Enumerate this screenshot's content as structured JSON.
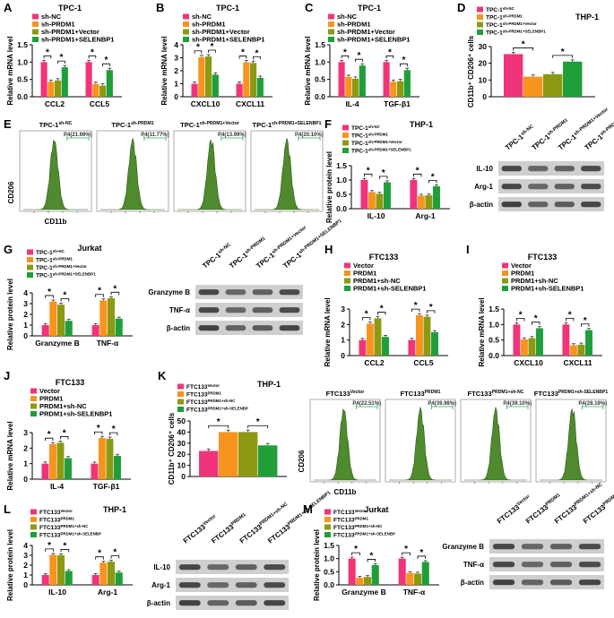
{
  "colors": {
    "pink": "#f0347a",
    "orange": "#f7941d",
    "olive": "#8c9a13",
    "green": "#1f9e3a",
    "flow": "#4f8a2e"
  },
  "panels": {
    "A": {
      "label": "A",
      "title": "TPC-1",
      "ylabel": "Relative mRNA level",
      "legend": [
        "sh-NC",
        "sh-PRDM1",
        "sh-PRDM1+Vector",
        "sh-PRDM1+SELENBP1"
      ],
      "categories": [
        "CCL2",
        "CCL5"
      ],
      "ticks": [
        "0.0",
        "0.5",
        "1.0",
        "1.5"
      ]
    },
    "B": {
      "label": "B",
      "title": "TPC-1",
      "ylabel": "Relative mRNA level",
      "legend": [
        "sh-NC",
        "sh-PRDM1",
        "sh-PRDM1+Vector",
        "sh-PRDM1+SELENBP1"
      ],
      "categories": [
        "CXCL10",
        "CXCL11"
      ],
      "ticks": [
        "0",
        "1",
        "2",
        "3",
        "4"
      ]
    },
    "C": {
      "label": "C",
      "title": "TPC-1",
      "ylabel": "Relative mRNA level",
      "legend": [
        "sh-NC",
        "sh-PRDM1",
        "sh-PRDM1+Vector",
        "sh-PRDM1+SELENBP1"
      ],
      "categories": [
        "IL-4",
        "TGF-β1"
      ],
      "ticks": [
        "0.0",
        "0.5",
        "1.0",
        "1.5"
      ]
    },
    "D": {
      "label": "D",
      "title": "THP-1",
      "ylabel": "CD11b⁺ CD206⁺ cells",
      "legend": [
        "TPC-1sh-NC",
        "TPC-1sh-PRDM1",
        "TPC-1sh-PRDM1+Vector",
        "TPC-1sh-PRDM1+SELENBP1"
      ],
      "ticks": [
        "0",
        "10",
        "20",
        "30"
      ]
    },
    "E": {
      "label": "E",
      "titles": [
        "TPC-1sh-NC",
        "TPC-1sh-PRDM1",
        "TPC-1sh-PRDM1+Vector",
        "TPC-1sh-PRDM1+SELENBP1"
      ],
      "gates": [
        "P4(21.69%)",
        "P4(11.77%)",
        "P4(13.99%)",
        "P4(20.10%)"
      ],
      "ylabel": "CD206",
      "xlabel": "CD11b"
    },
    "F": {
      "label": "F",
      "title": "THP-1",
      "ylabel": "Relative protein level",
      "legend": [
        "TPC-1sh-NC",
        "TPC-1sh-PRDM1",
        "TPC-1sh-PRDM1+Vector",
        "TPC-1sh-PRDM1+SELENBP1"
      ],
      "categories": [
        "IL-10",
        "Arg-1"
      ],
      "ticks": [
        "0.0",
        "0.5",
        "1.0",
        "1.5"
      ],
      "blot_lanes": [
        "TPC-1sh-NC",
        "TPC-1sh-PRDM1",
        "TPC-1sh-PRDM1+Vector",
        "TPC-1sh-PRDM1+SELENBP1"
      ],
      "blot_rows": [
        "IL-10",
        "Arg-1",
        "β-actin"
      ]
    },
    "G": {
      "label": "G",
      "title": "Jurkat",
      "ylabel": "Relative protein level",
      "legend": [
        "TPC-1sh-NC",
        "TPC-1sh-PRDM1",
        "TPC-1sh-PRDM1+Vector",
        "TPC-1sh-PRDM1+SELENBP1"
      ],
      "categories": [
        "Granzyme B",
        "TNF-α"
      ],
      "ticks": [
        "0",
        "1",
        "2",
        "3",
        "4"
      ],
      "blot_lanes": [
        "TPC-1sh-NC",
        "TPC-1sh-PRDM1",
        "TPC-1sh-PRDM1+Vector",
        "TPC-1sh-PRDM1+SELENBP1"
      ],
      "blot_rows": [
        "Granzyme B",
        "TNF-α",
        "β-actin"
      ]
    },
    "H": {
      "label": "H",
      "title": "FTC133",
      "ylabel": "Relative mRNA level",
      "legend": [
        "Vector",
        "PRDM1",
        "PRDM1+sh-NC",
        "PRDM1+sh-SELENBP1"
      ],
      "categories": [
        "CCL2",
        "CCL5"
      ],
      "ticks": [
        "0",
        "1",
        "2",
        "3"
      ]
    },
    "I": {
      "label": "I",
      "title": "FTC133",
      "ylabel": "Relative mRNA level",
      "legend": [
        "Vector",
        "PRDM1",
        "PRDM1+sh-NC",
        "PRDM1+sh-SELENBP1"
      ],
      "categories": [
        "CXCL10",
        "CXCL11"
      ],
      "ticks": [
        "0.0",
        "0.5",
        "1.0",
        "1.5"
      ]
    },
    "J": {
      "label": "J",
      "title": "FTC133",
      "ylabel": "Relative mRNA level",
      "legend": [
        "Vector",
        "PRDM1",
        "PRDM1+sh-NC",
        "PRDM1+sh-SELENBP1"
      ],
      "categories": [
        "IL-4",
        "TGF-β1"
      ],
      "ticks": [
        "0",
        "1",
        "2",
        "3"
      ]
    },
    "K": {
      "label": "K",
      "title": "THP-1",
      "ylabel": "CD11b⁺ CD206⁺ cells",
      "legend": [
        "FTC133Vector",
        "FTC133PRDM1",
        "FTC133PRDM1+sh-NC",
        "FTC133PRDM1+sh-SELENBP"
      ],
      "ticks": [
        "0",
        "10",
        "20",
        "30",
        "40",
        "50"
      ],
      "flow_titles": [
        "FTC133Vector",
        "FTC133PRDM1",
        "FTC133PRDM1+sh-NC",
        "FTC133PRDM1+sh-SELENBP1"
      ],
      "gates": [
        "P4(22.51%)",
        "P4(39.98%)",
        "P4(39.10%)",
        "P4(28.19%)"
      ],
      "flow_ylabel": "CD206",
      "flow_xlabel": "CD11b"
    },
    "L": {
      "label": "L",
      "title": "THP-1",
      "ylabel": "Relative protein level",
      "legend": [
        "FTC133Vector",
        "FTC133PRDM1",
        "FTC133PRDM1+sh-NC",
        "FTC133PRDM1+sh-SELENBP"
      ],
      "categories": [
        "IL-10",
        "Arg-1"
      ],
      "ticks": [
        "0",
        "1",
        "2",
        "3",
        "4"
      ],
      "blot_lanes": [
        "FTC133Vector",
        "FTC133PRDM1",
        "FTC133PRDM1+sh-NC",
        "FTC133PRDM1+sh-SELENBP1"
      ],
      "blot_rows": [
        "IL-10",
        "Arg-1",
        "β-actin"
      ]
    },
    "M": {
      "label": "M",
      "title": "Jurkat",
      "ylabel": "Relative protein level",
      "legend": [
        "FTC133Vector",
        "FTC133PRDM1",
        "FTC133PRDM1+sh-NC",
        "FTC133PRDM1+sh-SELENBP"
      ],
      "categories": [
        "Granzyme B",
        "TNF-α"
      ],
      "ticks": [
        "0.0",
        "0.5",
        "1.0",
        "1.5"
      ],
      "blot_lanes": [
        "FTC133Vector",
        "FTC133PRDM1",
        "FTC133PRDM1+sh-NC",
        "FTC133PRDM1+sh-SELENBP1"
      ],
      "blot_rows": [
        "Granzyme B",
        "TNF-α",
        "β-actin"
      ]
    }
  },
  "chart_data": [
    {
      "id": "A",
      "type": "bar",
      "categories": [
        "CCL2",
        "CCL5"
      ],
      "ylim": [
        0,
        1.5
      ],
      "series": [
        {
          "name": "sh-NC",
          "values": [
            1.0,
            1.0
          ]
        },
        {
          "name": "sh-PRDM1",
          "values": [
            0.43,
            0.37
          ]
        },
        {
          "name": "sh-PRDM1+Vector",
          "values": [
            0.47,
            0.32
          ]
        },
        {
          "name": "sh-PRDM1+SELENBP1",
          "values": [
            0.85,
            0.77
          ]
        }
      ]
    },
    {
      "id": "B",
      "type": "bar",
      "categories": [
        "CXCL10",
        "CXCL11"
      ],
      "ylim": [
        0,
        4
      ],
      "series": [
        {
          "name": "sh-NC",
          "values": [
            1.0,
            1.0
          ]
        },
        {
          "name": "sh-PRDM1",
          "values": [
            3.05,
            2.65
          ]
        },
        {
          "name": "sh-PRDM1+Vector",
          "values": [
            3.1,
            2.6
          ]
        },
        {
          "name": "sh-PRDM1+SELENBP1",
          "values": [
            1.7,
            1.45
          ]
        }
      ]
    },
    {
      "id": "C",
      "type": "bar",
      "categories": [
        "IL-4",
        "TGF-β1"
      ],
      "ylim": [
        0,
        1.5
      ],
      "series": [
        {
          "name": "sh-NC",
          "values": [
            1.0,
            1.0
          ]
        },
        {
          "name": "sh-PRDM1",
          "values": [
            0.57,
            0.43
          ]
        },
        {
          "name": "sh-PRDM1+Vector",
          "values": [
            0.52,
            0.45
          ]
        },
        {
          "name": "sh-PRDM1+SELENBP1",
          "values": [
            0.9,
            0.77
          ]
        }
      ]
    },
    {
      "id": "D",
      "type": "bar",
      "categories": [
        ""
      ],
      "ylim": [
        0,
        30
      ],
      "series": [
        {
          "name": "TPC-1sh-NC",
          "values": [
            25.5
          ]
        },
        {
          "name": "TPC-1sh-PRDM1",
          "values": [
            12
          ]
        },
        {
          "name": "TPC-1sh-PRDM1+Vector",
          "values": [
            13.5
          ]
        },
        {
          "name": "TPC-1sh-PRDM1+SELENBP1",
          "values": [
            21
          ]
        }
      ]
    },
    {
      "id": "F",
      "type": "bar",
      "categories": [
        "IL-10",
        "Arg-1"
      ],
      "ylim": [
        0,
        1.5
      ],
      "series": [
        {
          "name": "TPC-1sh-NC",
          "values": [
            1.0,
            1.0
          ]
        },
        {
          "name": "TPC-1sh-PRDM1",
          "values": [
            0.58,
            0.45
          ]
        },
        {
          "name": "TPC-1sh-PRDM1+Vector",
          "values": [
            0.52,
            0.47
          ]
        },
        {
          "name": "TPC-1sh-PRDM1+SELENBP1",
          "values": [
            0.92,
            0.78
          ]
        }
      ]
    },
    {
      "id": "G",
      "type": "bar",
      "categories": [
        "Granzyme B",
        "TNF-α"
      ],
      "ylim": [
        0,
        4
      ],
      "series": [
        {
          "name": "TPC-1sh-NC",
          "values": [
            1.0,
            1.0
          ]
        },
        {
          "name": "TPC-1sh-PRDM1",
          "values": [
            3.2,
            3.3
          ]
        },
        {
          "name": "TPC-1sh-PRDM1+Vector",
          "values": [
            2.9,
            3.5
          ]
        },
        {
          "name": "TPC-1sh-PRDM1+SELENBP1",
          "values": [
            1.4,
            1.6
          ]
        }
      ]
    },
    {
      "id": "H",
      "type": "bar",
      "categories": [
        "CCL2",
        "CCL5"
      ],
      "ylim": [
        0,
        3
      ],
      "series": [
        {
          "name": "Vector",
          "values": [
            1.0,
            1.0
          ]
        },
        {
          "name": "PRDM1",
          "values": [
            2.05,
            2.6
          ]
        },
        {
          "name": "PRDM1+sh-NC",
          "values": [
            2.4,
            2.5
          ]
        },
        {
          "name": "PRDM1+sh-SELENBP1",
          "values": [
            1.2,
            1.5
          ]
        }
      ]
    },
    {
      "id": "I",
      "type": "bar",
      "categories": [
        "CXCL10",
        "CXCL11"
      ],
      "ylim": [
        0,
        1.5
      ],
      "series": [
        {
          "name": "Vector",
          "values": [
            1.0,
            1.0
          ]
        },
        {
          "name": "PRDM1",
          "values": [
            0.52,
            0.33
          ]
        },
        {
          "name": "PRDM1+sh-NC",
          "values": [
            0.56,
            0.35
          ]
        },
        {
          "name": "PRDM1+sh-SELENBP1",
          "values": [
            0.88,
            0.82
          ]
        }
      ]
    },
    {
      "id": "J",
      "type": "bar",
      "categories": [
        "IL-4",
        "TGF-β1"
      ],
      "ylim": [
        0,
        3
      ],
      "series": [
        {
          "name": "Vector",
          "values": [
            1.0,
            1.0
          ]
        },
        {
          "name": "PRDM1",
          "values": [
            2.25,
            2.65
          ]
        },
        {
          "name": "PRDM1+sh-NC",
          "values": [
            2.35,
            2.6
          ]
        },
        {
          "name": "PRDM1+sh-SELENBP1",
          "values": [
            1.35,
            1.5
          ]
        }
      ]
    },
    {
      "id": "K",
      "type": "bar",
      "categories": [
        ""
      ],
      "ylim": [
        0,
        50
      ],
      "series": [
        {
          "name": "FTC133Vector",
          "values": [
            23
          ]
        },
        {
          "name": "FTC133PRDM1",
          "values": [
            40
          ]
        },
        {
          "name": "FTC133PRDM1+sh-NC",
          "values": [
            40
          ]
        },
        {
          "name": "FTC133PRDM1+sh-SELENBP",
          "values": [
            28
          ]
        }
      ]
    },
    {
      "id": "L",
      "type": "bar",
      "categories": [
        "IL-10",
        "Arg-1"
      ],
      "ylim": [
        0,
        4
      ],
      "series": [
        {
          "name": "FTC133Vector",
          "values": [
            1.0,
            1.0
          ]
        },
        {
          "name": "FTC133PRDM1",
          "values": [
            3.05,
            2.25
          ]
        },
        {
          "name": "FTC133PRDM1+sh-NC",
          "values": [
            3.0,
            2.35
          ]
        },
        {
          "name": "FTC133PRDM1+sh-SELENBP",
          "values": [
            1.4,
            1.25
          ]
        }
      ]
    },
    {
      "id": "M",
      "type": "bar",
      "categories": [
        "Granzyme B",
        "TNF-α"
      ],
      "ylim": [
        0,
        1.5
      ],
      "series": [
        {
          "name": "FTC133Vector",
          "values": [
            1.0,
            1.0
          ]
        },
        {
          "name": "FTC133PRDM1",
          "values": [
            0.27,
            0.45
          ]
        },
        {
          "name": "FTC133PRDM1+sh-NC",
          "values": [
            0.3,
            0.43
          ]
        },
        {
          "name": "FTC133PRDM1+sh-SELENBP",
          "values": [
            0.75,
            0.87
          ]
        }
      ]
    }
  ]
}
